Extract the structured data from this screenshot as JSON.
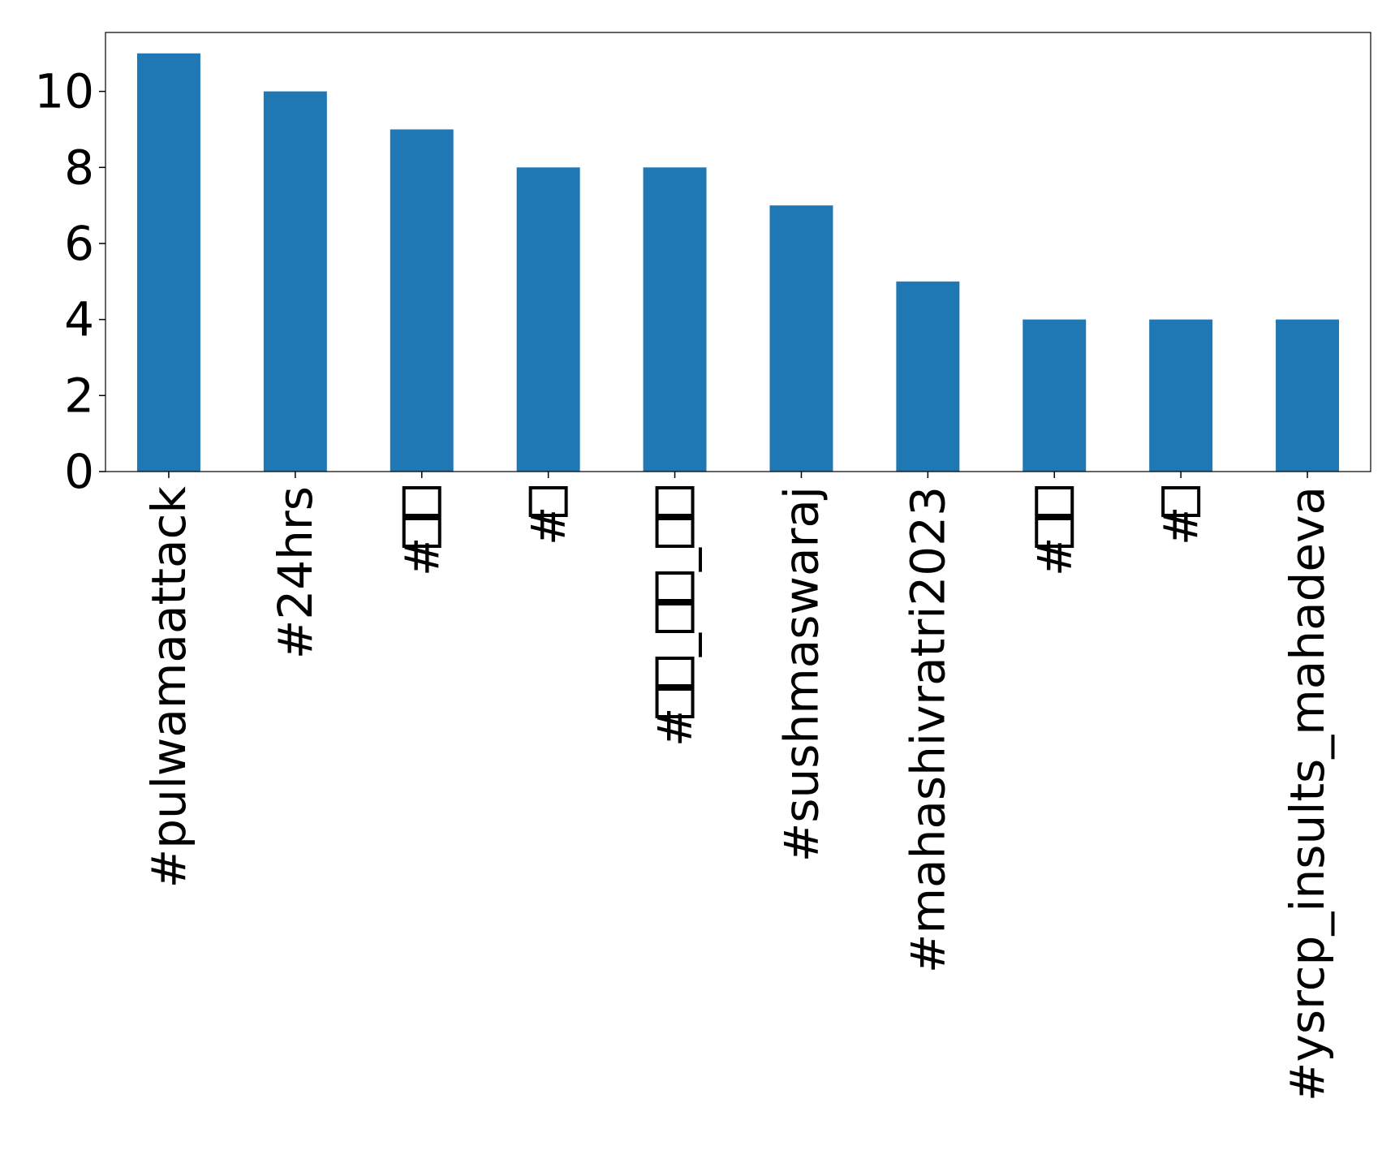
{
  "chart_data": {
    "type": "bar",
    "title": "",
    "xlabel": "",
    "ylabel": "",
    "categories": [
      "#pulwamaattack",
      "#24hrs",
      "#□□",
      "#□",
      "#□□_□□_□□",
      "#sushmaswaraj",
      "#mahashivratri2023",
      "#□□",
      "#□",
      "#ysrcp_insults_mahadeva"
    ],
    "values": [
      11,
      10,
      9,
      8,
      8,
      7,
      5,
      4,
      4,
      4
    ],
    "ylim": [
      0,
      11.55
    ],
    "yticks": [
      0,
      2,
      4,
      6,
      8,
      10
    ],
    "ytick_labels": [
      "0",
      "2",
      "4",
      "6",
      "8",
      "10"
    ],
    "colors": {
      "bar": "#1f77b4",
      "axes": "#000000",
      "background": "#ffffff"
    },
    "grid": false,
    "legend": "none"
  }
}
